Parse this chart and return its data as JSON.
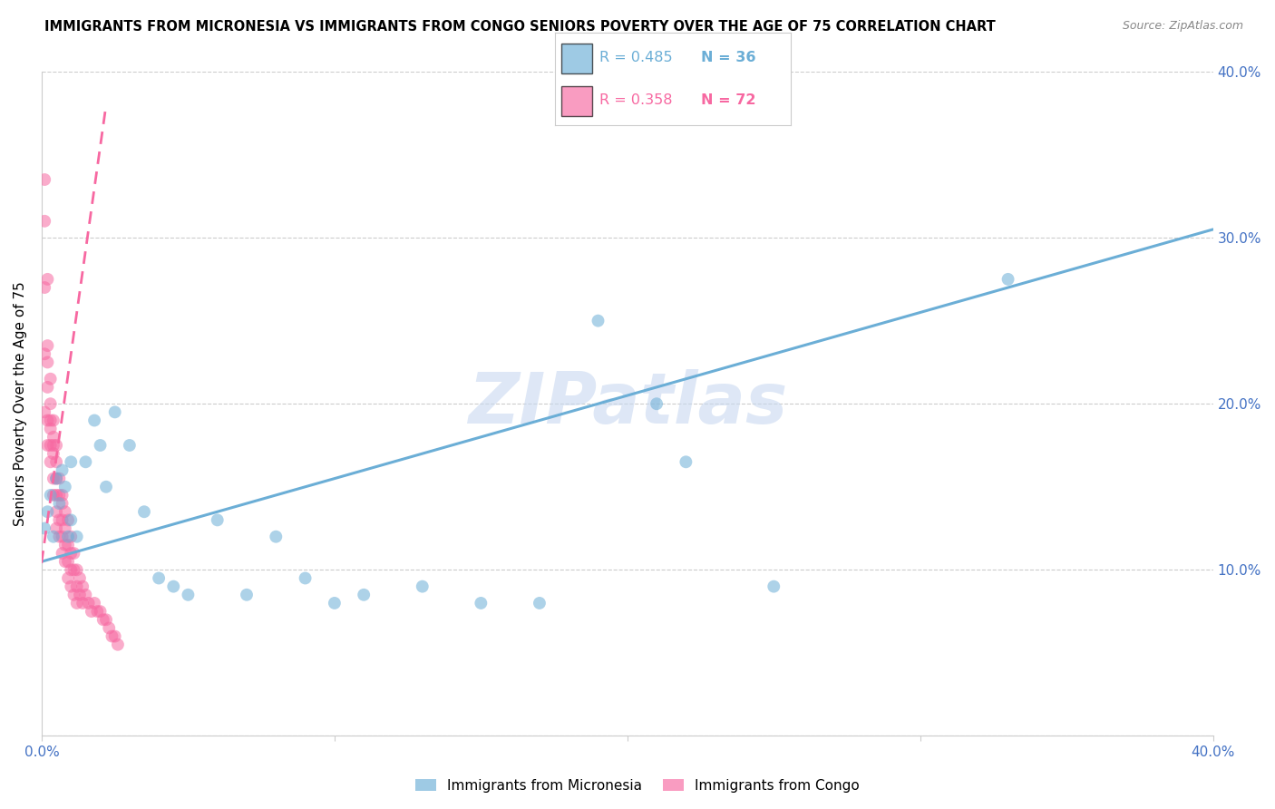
{
  "title": "IMMIGRANTS FROM MICRONESIA VS IMMIGRANTS FROM CONGO SENIORS POVERTY OVER THE AGE OF 75 CORRELATION CHART",
  "source": "Source: ZipAtlas.com",
  "ylabel": "Seniors Poverty Over the Age of 75",
  "xlim": [
    0.0,
    0.4
  ],
  "ylim": [
    0.0,
    0.4
  ],
  "ytick_vals": [
    0.0,
    0.1,
    0.2,
    0.3,
    0.4
  ],
  "ytick_labels_right": [
    "",
    "10.0%",
    "20.0%",
    "30.0%",
    "40.0%"
  ],
  "xtick_vals": [
    0.0,
    0.1,
    0.2,
    0.3,
    0.4
  ],
  "xtick_labels": [
    "0.0%",
    "",
    "",
    "",
    "40.0%"
  ],
  "micronesia_color": "#6baed6",
  "congo_color": "#f768a1",
  "micronesia_R": 0.485,
  "micronesia_N": 36,
  "congo_R": 0.358,
  "congo_N": 72,
  "micronesia_x": [
    0.001,
    0.002,
    0.003,
    0.004,
    0.005,
    0.006,
    0.007,
    0.008,
    0.009,
    0.01,
    0.01,
    0.012,
    0.015,
    0.018,
    0.02,
    0.022,
    0.025,
    0.03,
    0.035,
    0.04,
    0.045,
    0.05,
    0.06,
    0.07,
    0.08,
    0.09,
    0.1,
    0.11,
    0.13,
    0.15,
    0.17,
    0.19,
    0.21,
    0.22,
    0.25,
    0.33
  ],
  "micronesia_y": [
    0.125,
    0.135,
    0.145,
    0.12,
    0.155,
    0.14,
    0.16,
    0.15,
    0.12,
    0.13,
    0.165,
    0.12,
    0.165,
    0.19,
    0.175,
    0.15,
    0.195,
    0.175,
    0.135,
    0.095,
    0.09,
    0.085,
    0.13,
    0.085,
    0.12,
    0.095,
    0.08,
    0.085,
    0.09,
    0.08,
    0.08,
    0.25,
    0.2,
    0.165,
    0.09,
    0.275
  ],
  "congo_x": [
    0.001,
    0.001,
    0.001,
    0.001,
    0.001,
    0.002,
    0.002,
    0.002,
    0.002,
    0.002,
    0.002,
    0.003,
    0.003,
    0.003,
    0.003,
    0.003,
    0.003,
    0.004,
    0.004,
    0.004,
    0.004,
    0.004,
    0.004,
    0.005,
    0.005,
    0.005,
    0.005,
    0.005,
    0.005,
    0.006,
    0.006,
    0.006,
    0.006,
    0.007,
    0.007,
    0.007,
    0.007,
    0.007,
    0.008,
    0.008,
    0.008,
    0.008,
    0.009,
    0.009,
    0.009,
    0.009,
    0.01,
    0.01,
    0.01,
    0.01,
    0.011,
    0.011,
    0.011,
    0.012,
    0.012,
    0.012,
    0.013,
    0.013,
    0.014,
    0.014,
    0.015,
    0.016,
    0.017,
    0.018,
    0.019,
    0.02,
    0.021,
    0.022,
    0.023,
    0.024,
    0.025,
    0.026
  ],
  "congo_y": [
    0.335,
    0.31,
    0.27,
    0.23,
    0.195,
    0.275,
    0.235,
    0.225,
    0.21,
    0.19,
    0.175,
    0.215,
    0.2,
    0.19,
    0.185,
    0.175,
    0.165,
    0.19,
    0.18,
    0.175,
    0.17,
    0.155,
    0.145,
    0.175,
    0.165,
    0.155,
    0.145,
    0.135,
    0.125,
    0.155,
    0.145,
    0.13,
    0.12,
    0.145,
    0.14,
    0.13,
    0.12,
    0.11,
    0.135,
    0.125,
    0.115,
    0.105,
    0.13,
    0.115,
    0.105,
    0.095,
    0.12,
    0.11,
    0.1,
    0.09,
    0.11,
    0.1,
    0.085,
    0.1,
    0.09,
    0.08,
    0.095,
    0.085,
    0.09,
    0.08,
    0.085,
    0.08,
    0.075,
    0.08,
    0.075,
    0.075,
    0.07,
    0.07,
    0.065,
    0.06,
    0.06,
    0.055
  ],
  "micronesia_line_x": [
    0.0,
    0.4
  ],
  "micronesia_line_y": [
    0.105,
    0.305
  ],
  "congo_line_x": [
    -0.002,
    0.022
  ],
  "congo_line_y": [
    0.08,
    0.38
  ],
  "watermark": "ZIPatlas",
  "watermark_color": "#c8d8f0",
  "background_color": "#ffffff",
  "grid_color": "#cccccc",
  "tick_color": "#4472c4",
  "legend_items": [
    {
      "label": "Immigrants from Micronesia",
      "color": "#6baed6"
    },
    {
      "label": "Immigrants from Congo",
      "color": "#f768a1"
    }
  ]
}
